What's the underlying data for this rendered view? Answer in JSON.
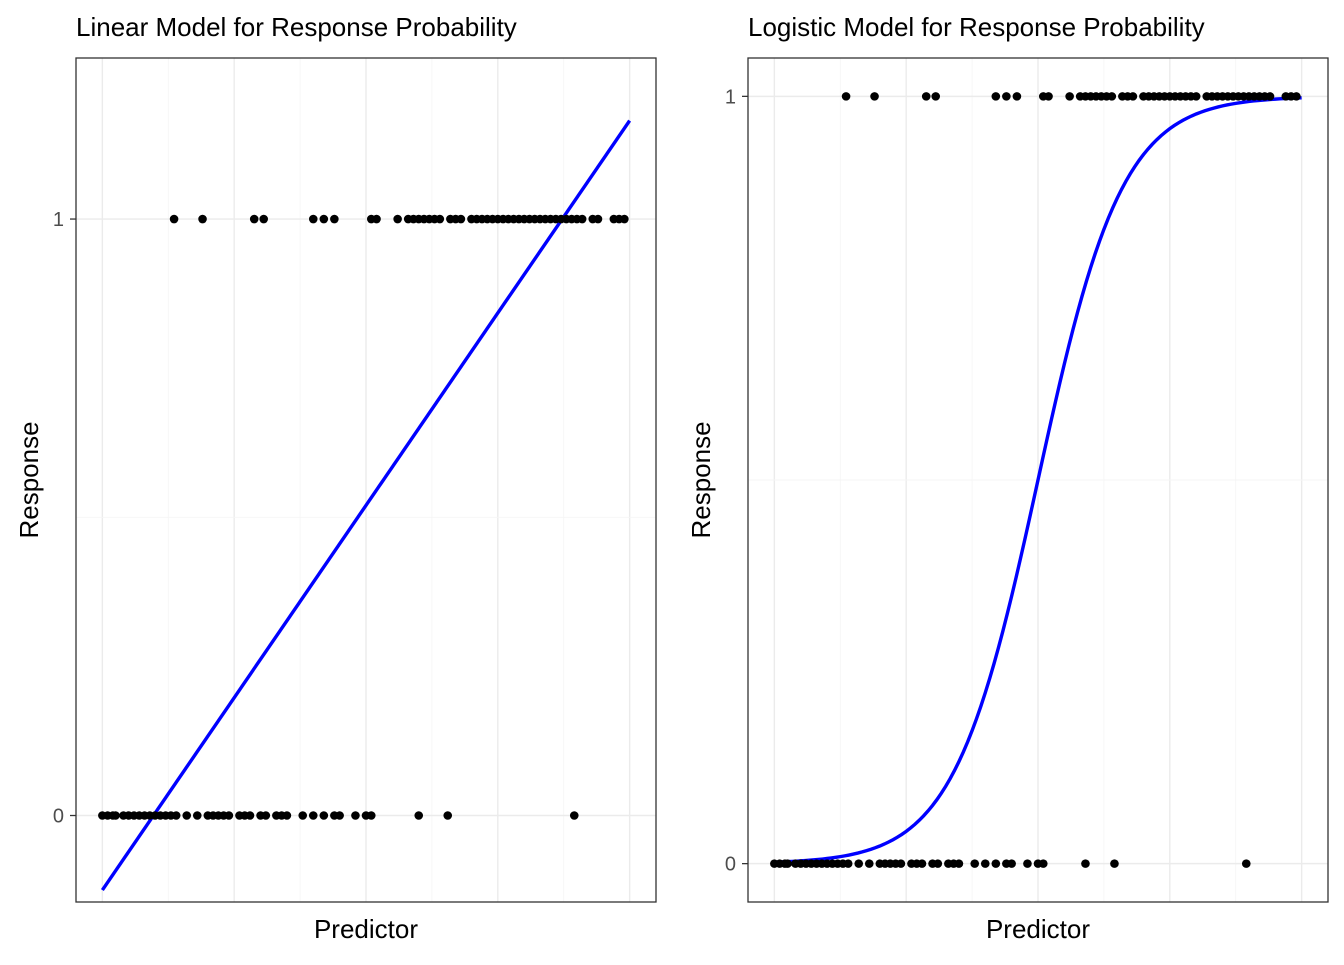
{
  "colors": {
    "fit_line": "#0000ff",
    "points": "#000000"
  },
  "chart_data": [
    {
      "type": "scatter",
      "title": "Linear Model for Response Probability",
      "xlabel": "Predictor",
      "ylabel": "Response",
      "yticks": [
        0,
        1
      ],
      "ylim": [
        -0.145,
        1.27
      ],
      "xlim": [
        -0.05,
        1.05
      ],
      "grid": true,
      "points": {
        "y1": [
          0.136,
          0.19,
          0.288,
          0.306,
          0.4,
          0.42,
          0.44,
          0.51,
          0.52,
          0.56,
          0.58,
          0.59,
          0.6,
          0.61,
          0.62,
          0.63,
          0.64,
          0.66,
          0.67,
          0.68,
          0.7,
          0.71,
          0.72,
          0.73,
          0.74,
          0.75,
          0.76,
          0.77,
          0.78,
          0.79,
          0.8,
          0.81,
          0.82,
          0.83,
          0.84,
          0.85,
          0.86,
          0.87,
          0.88,
          0.89,
          0.9,
          0.91,
          0.93,
          0.94,
          0.97,
          0.98,
          0.99
        ],
        "y0": [
          0.0,
          0.01,
          0.02,
          0.025,
          0.04,
          0.05,
          0.06,
          0.07,
          0.08,
          0.09,
          0.1,
          0.11,
          0.12,
          0.13,
          0.14,
          0.16,
          0.18,
          0.2,
          0.21,
          0.22,
          0.23,
          0.24,
          0.26,
          0.27,
          0.28,
          0.3,
          0.31,
          0.33,
          0.34,
          0.35,
          0.38,
          0.4,
          0.42,
          0.44,
          0.45,
          0.48,
          0.5,
          0.51,
          0.6,
          0.655,
          0.895
        ]
      },
      "fit": {
        "kind": "linear",
        "x": [
          0,
          1
        ],
        "y": [
          -0.125,
          1.165
        ]
      }
    },
    {
      "type": "scatter",
      "title": "Logistic Model for Response Probability",
      "xlabel": "Predictor",
      "ylabel": "Response",
      "yticks": [
        0,
        1
      ],
      "ylim": [
        -0.05,
        1.05
      ],
      "xlim": [
        -0.05,
        1.05
      ],
      "grid": true,
      "points": {
        "y1": [
          0.136,
          0.19,
          0.288,
          0.306,
          0.42,
          0.44,
          0.46,
          0.51,
          0.52,
          0.56,
          0.58,
          0.59,
          0.6,
          0.61,
          0.62,
          0.63,
          0.64,
          0.66,
          0.67,
          0.68,
          0.7,
          0.71,
          0.72,
          0.73,
          0.74,
          0.75,
          0.76,
          0.77,
          0.78,
          0.79,
          0.8,
          0.82,
          0.83,
          0.84,
          0.85,
          0.86,
          0.87,
          0.88,
          0.89,
          0.9,
          0.91,
          0.92,
          0.93,
          0.94,
          0.97,
          0.98,
          0.99
        ],
        "y0": [
          0.0,
          0.01,
          0.02,
          0.025,
          0.04,
          0.05,
          0.06,
          0.07,
          0.08,
          0.09,
          0.1,
          0.11,
          0.12,
          0.13,
          0.14,
          0.16,
          0.18,
          0.2,
          0.21,
          0.22,
          0.23,
          0.24,
          0.26,
          0.27,
          0.28,
          0.3,
          0.31,
          0.33,
          0.34,
          0.35,
          0.38,
          0.4,
          0.42,
          0.44,
          0.45,
          0.48,
          0.5,
          0.51,
          0.59,
          0.645,
          0.895
        ]
      },
      "fit": {
        "kind": "logistic",
        "midpoint": 0.5,
        "slope": 12.5
      }
    }
  ]
}
